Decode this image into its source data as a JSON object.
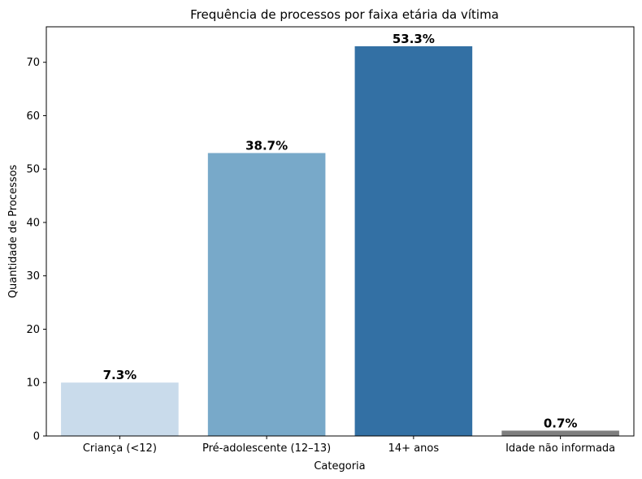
{
  "chart_data": {
    "type": "bar",
    "title": "Frequência de processos por faixa etária da vítima",
    "xlabel": "Categoria",
    "ylabel": "Quantidade de Processos",
    "categories": [
      "Criança (<12)",
      "Pré-adolescente (12–13)",
      "14+ anos",
      "Idade não informada"
    ],
    "values": [
      10,
      53,
      73,
      1
    ],
    "data_labels": [
      "7.3%",
      "38.7%",
      "53.3%",
      "0.7%"
    ],
    "colors": [
      "#c9dbeb",
      "#78a9c9",
      "#3370a4",
      "#7f7f7f"
    ],
    "ylim": [
      0,
      76.65
    ],
    "yticks": [
      0,
      10,
      20,
      30,
      40,
      50,
      60,
      70
    ],
    "grid": false
  }
}
